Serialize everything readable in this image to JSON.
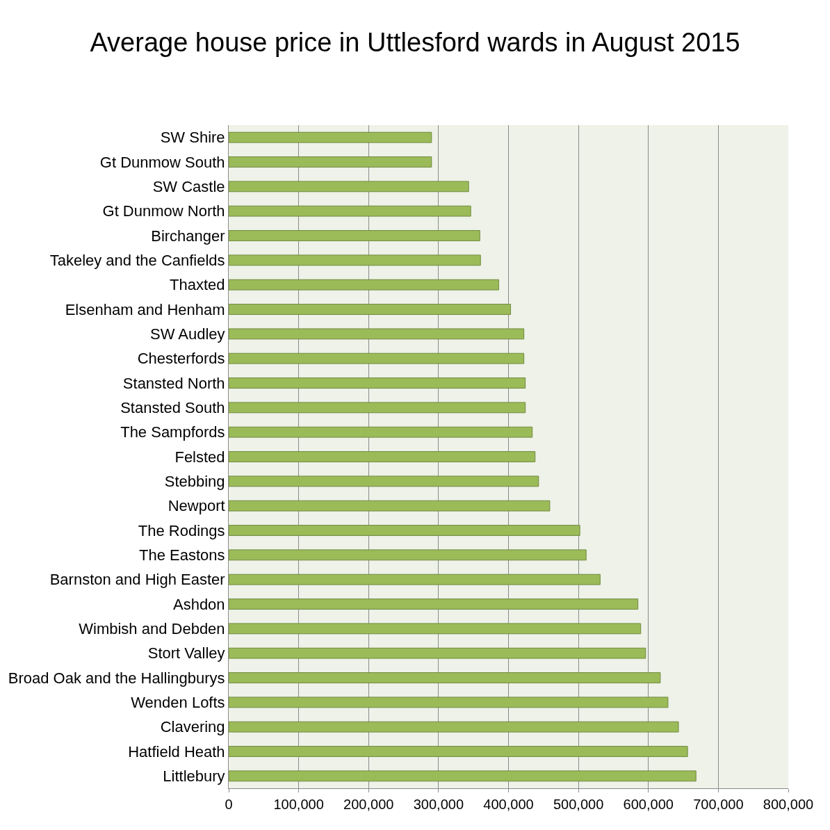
{
  "chart_data": {
    "type": "bar",
    "orientation": "horizontal",
    "title": "Average house price in Uttlesford wards in August 2015",
    "categories": [
      "SW Shire",
      "Gt Dunmow South",
      "SW Castle",
      "Gt Dunmow North",
      "Birchanger",
      "Takeley and the Canfields",
      "Thaxted",
      "Elsenham and Henham",
      "SW Audley",
      "Chesterfords",
      "Stansted North",
      "Stansted South",
      "The Sampfords",
      "Felsted",
      "Stebbing",
      "Newport",
      "The Rodings",
      "The Eastons",
      "Barnston and High Easter",
      "Ashdon",
      "Wimbish and Debden",
      "Stort Valley",
      "Broad Oak and the Hallingburys",
      "Wenden Lofts",
      "Clavering",
      "Hatfield Heath",
      "Littlebury"
    ],
    "values": [
      290000,
      290000,
      343000,
      346000,
      359000,
      360000,
      386000,
      403000,
      422000,
      422000,
      424000,
      424000,
      434000,
      438000,
      443000,
      459000,
      502000,
      511000,
      531000,
      585000,
      589000,
      596000,
      617000,
      628000,
      643000,
      656000,
      668000
    ],
    "color": "#9bbb59",
    "xlim": [
      0,
      800000
    ],
    "xticks": [
      0,
      {
        "value": 100000,
        "label": "100,000"
      },
      {
        "value": 200000,
        "label": "200,000"
      },
      {
        "value": 300000,
        "label": "300,000"
      },
      {
        "value": 400000,
        "label": "400,000"
      },
      {
        "value": 500000,
        "label": "500,000"
      },
      {
        "value": 600000,
        "label": "600,000"
      },
      {
        "value": 700000,
        "label": "700,000"
      },
      {
        "value": 800000,
        "label": "800,000"
      }
    ],
    "grid": "x",
    "legend": false
  }
}
